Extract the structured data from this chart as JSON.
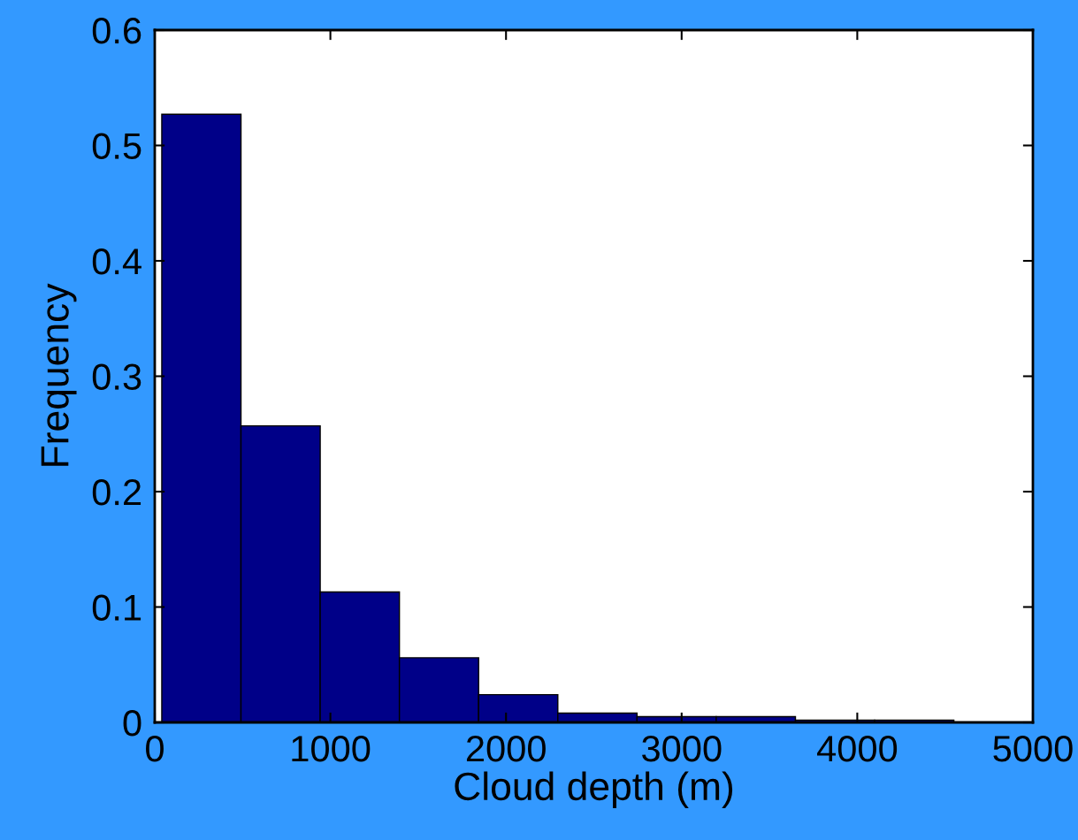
{
  "chart_data": {
    "type": "histogram",
    "xlabel": "Cloud depth (m)",
    "ylabel": "Frequency",
    "bins": [
      40,
      491,
      942,
      1393,
      1844,
      2295,
      2746,
      3197,
      3648,
      4099,
      4550
    ],
    "values": [
      0.527,
      0.257,
      0.113,
      0.056,
      0.024,
      0.008,
      0.005,
      0.005,
      0.002,
      0.002
    ],
    "color": "#000088",
    "xlim": [
      0,
      5000
    ],
    "xticks": [
      0,
      1000,
      2000,
      3000,
      4000,
      5000
    ],
    "ylim": [
      0,
      0.6
    ],
    "yticks": [
      0,
      0.1,
      0.2,
      0.3,
      0.4,
      0.5,
      0.6
    ],
    "grid": false
  }
}
